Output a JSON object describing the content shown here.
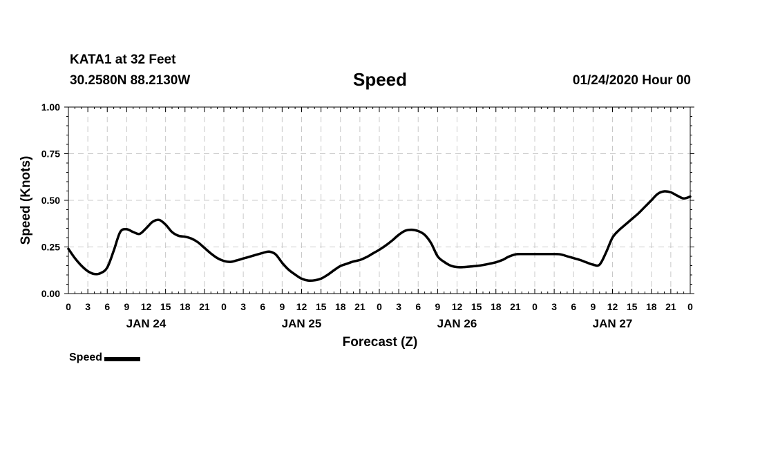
{
  "header": {
    "station": "KATA1 at 32 Feet",
    "coords": "30.2580N 88.2130W",
    "datetime": "01/24/2020 Hour 00"
  },
  "chart_data": {
    "type": "line",
    "title": "Speed",
    "xlabel": "Forecast (Z)",
    "ylabel": "Speed (Knots)",
    "xlim": [
      0,
      96
    ],
    "ylim": [
      0,
      1
    ],
    "grid": true,
    "legend": "bottom-left",
    "y_ticks": [
      "0.00",
      "0.25",
      "0.50",
      "0.75",
      "1.00"
    ],
    "x_tick_labels": [
      "0",
      "3",
      "6",
      "9",
      "12",
      "15",
      "18",
      "21",
      "0",
      "3",
      "6",
      "9",
      "12",
      "15",
      "18",
      "21",
      "0",
      "3",
      "6",
      "9",
      "12",
      "15",
      "18",
      "21",
      "0",
      "3",
      "6",
      "9",
      "12",
      "15",
      "18",
      "21",
      "0"
    ],
    "day_labels": [
      "JAN 24",
      "JAN 25",
      "JAN 26",
      "JAN 27"
    ],
    "series": [
      {
        "name": "Speed",
        "color": "#000000",
        "x": [
          0,
          1,
          2,
          3,
          4,
          5,
          6,
          7,
          8,
          9,
          10,
          11,
          12,
          13,
          14,
          15,
          16,
          17,
          18,
          19,
          20,
          21,
          22,
          23,
          24,
          25,
          26,
          27,
          28,
          29,
          30,
          31,
          32,
          33,
          34,
          35,
          36,
          37,
          38,
          39,
          40,
          41,
          42,
          43,
          44,
          45,
          46,
          47,
          48,
          49,
          50,
          51,
          52,
          53,
          54,
          55,
          56,
          57,
          58,
          59,
          60,
          61,
          62,
          63,
          64,
          65,
          66,
          67,
          68,
          69,
          70,
          71,
          72,
          73,
          74,
          75,
          76,
          77,
          78,
          79,
          80,
          81,
          82,
          83,
          84,
          85,
          86,
          87,
          88,
          89,
          90,
          91,
          92,
          93,
          94,
          95,
          96
        ],
        "values": [
          0.24,
          0.19,
          0.15,
          0.12,
          0.105,
          0.11,
          0.14,
          0.23,
          0.33,
          0.345,
          0.33,
          0.32,
          0.35,
          0.385,
          0.395,
          0.37,
          0.33,
          0.31,
          0.305,
          0.295,
          0.275,
          0.245,
          0.215,
          0.19,
          0.175,
          0.17,
          0.178,
          0.188,
          0.198,
          0.208,
          0.218,
          0.225,
          0.21,
          0.165,
          0.128,
          0.102,
          0.08,
          0.07,
          0.071,
          0.08,
          0.1,
          0.125,
          0.148,
          0.16,
          0.172,
          0.18,
          0.195,
          0.215,
          0.235,
          0.258,
          0.285,
          0.315,
          0.337,
          0.342,
          0.335,
          0.315,
          0.27,
          0.2,
          0.17,
          0.15,
          0.142,
          0.142,
          0.145,
          0.148,
          0.153,
          0.16,
          0.168,
          0.18,
          0.198,
          0.21,
          0.212,
          0.212,
          0.212,
          0.212,
          0.212,
          0.212,
          0.21,
          0.2,
          0.19,
          0.18,
          0.167,
          0.155,
          0.155,
          0.22,
          0.3,
          0.34,
          0.37,
          0.4,
          0.43,
          0.465,
          0.5,
          0.535,
          0.548,
          0.543,
          0.525,
          0.51,
          0.52
        ]
      }
    ]
  }
}
